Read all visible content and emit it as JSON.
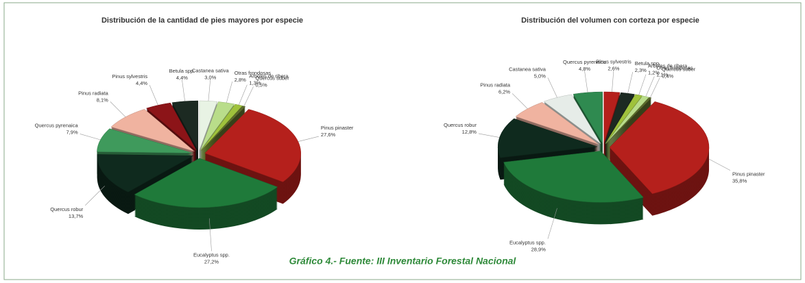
{
  "chart_data": [
    {
      "type": "pie",
      "title": "Distribución de la cantidad de pies mayores por especie",
      "categories": [
        "Castanea sativa",
        "Otras frondosas",
        "Arboles de ribera",
        "Quercus suber",
        "Pinus pinaster",
        "Eucalyptus spp.",
        "Quercus robur",
        "Quercus pyrenaica",
        "Pinus radiata",
        "Pinus sylvestris",
        "Betula spp."
      ],
      "values": [
        3.0,
        2.8,
        1.3,
        0.5,
        27.6,
        27.2,
        13.7,
        7.9,
        8.1,
        4.4,
        4.4
      ],
      "value_labels": [
        "3,0%",
        "2,8%",
        "1,3%",
        "0,5%",
        "27,6%",
        "27,2%",
        "13,7%",
        "7,9%",
        "8,1%",
        "4,4%",
        "4,4%"
      ],
      "colors": [
        "#e8f3e4",
        "#b9dd8a",
        "#9fc23c",
        "#5b6b2a",
        "#b5201c",
        "#1f7a3a",
        "#0f2a1e",
        "#3f9a5c",
        "#f0b3a0",
        "#8c1418",
        "#1c2a22"
      ]
    },
    {
      "type": "pie",
      "title": "Distribución del volumen con corteza por especie",
      "categories": [
        "Pinus sylvestris",
        "Betula spp.",
        "Arboles de ribera",
        "Otras frondosas",
        "Quercus suber",
        "Pinus pinaster",
        "Eucalyptus spp.",
        "Quercus robur",
        "Pinus radiata",
        "Castanea sativa",
        "Quercus pyrenaica"
      ],
      "values": [
        2.6,
        2.3,
        1.2,
        1.1,
        0.4,
        35.8,
        28.9,
        12.8,
        6.2,
        5.0,
        4.8
      ],
      "value_labels": [
        "2,6%",
        "2,3%",
        "1,2%",
        "1,1%",
        "0,4%",
        "35,8%",
        "28,9%",
        "12,8%",
        "6,2%",
        "5,0%",
        "4,8%"
      ],
      "colors": [
        "#b5201c",
        "#1c2a22",
        "#9fc23c",
        "#b9dd8a",
        "#5b6b2a",
        "#b5201c",
        "#1f7a3a",
        "#0f2a1e",
        "#f0b3a0",
        "#e6ece8",
        "#2f8a50"
      ]
    }
  ],
  "caption": "Gráfico 4.- Fuente: III Inventario Forestal Nacional"
}
